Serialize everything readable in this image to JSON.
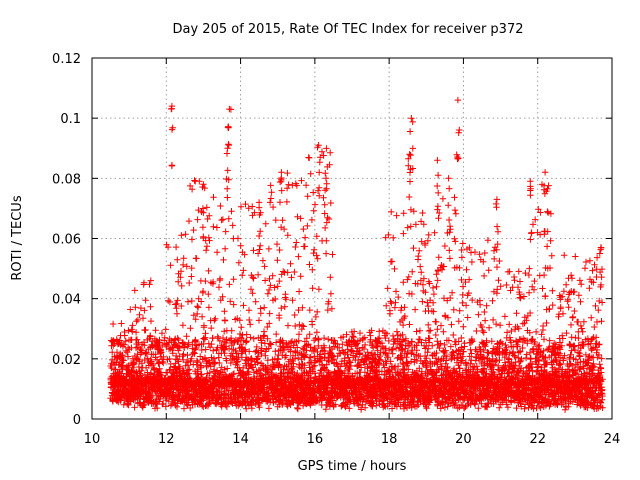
{
  "chart_data": {
    "type": "scatter",
    "title": "Day 205 of 2015, Rate Of TEC Index for receiver p372",
    "xlabel": "GPS time / hours",
    "ylabel": "ROTI / TECUs",
    "xlim": [
      10,
      24
    ],
    "ylim": [
      0,
      0.12
    ],
    "xticks": [
      10,
      12,
      14,
      16,
      18,
      20,
      22,
      24
    ],
    "xtick_labels": [
      "10",
      "12",
      "14",
      "16",
      "18",
      "20",
      "22",
      "24"
    ],
    "yticks": [
      0,
      0.02,
      0.04,
      0.06,
      0.08,
      0.1,
      0.12
    ],
    "ytick_labels": [
      "0",
      "0.02",
      "0.04",
      "0.06",
      "0.08",
      "0.1",
      "0.12"
    ],
    "grid": true,
    "marker": "+",
    "color": "#ff0000",
    "series": [
      {
        "name": "ROTI",
        "x_range": [
          10.5,
          23.75
        ],
        "typical_baseline": [
          0.005,
          0.015
        ],
        "peaks": [
          {
            "x": 12.15,
            "y": 0.104
          },
          {
            "x": 13.0,
            "y": 0.078
          },
          {
            "x": 13.7,
            "y": 0.103
          },
          {
            "x": 13.65,
            "y": 0.09
          },
          {
            "x": 14.5,
            "y": 0.072
          },
          {
            "x": 15.1,
            "y": 0.082
          },
          {
            "x": 16.1,
            "y": 0.091
          },
          {
            "x": 16.3,
            "y": 0.08
          },
          {
            "x": 18.6,
            "y": 0.1
          },
          {
            "x": 18.55,
            "y": 0.088
          },
          {
            "x": 19.3,
            "y": 0.086
          },
          {
            "x": 19.85,
            "y": 0.106
          },
          {
            "x": 19.6,
            "y": 0.08
          },
          {
            "x": 20.9,
            "y": 0.073
          },
          {
            "x": 21.8,
            "y": 0.079
          },
          {
            "x": 22.2,
            "y": 0.082
          },
          {
            "x": 23.7,
            "y": 0.057
          }
        ],
        "activity_bands": [
          {
            "x0": 10.5,
            "x1": 11.0,
            "ymax": 0.032
          },
          {
            "x0": 11.0,
            "x1": 11.6,
            "ymax": 0.046
          },
          {
            "x0": 11.6,
            "x1": 12.0,
            "ymax": 0.03
          },
          {
            "x0": 12.0,
            "x1": 12.6,
            "ymax": 0.062
          },
          {
            "x0": 12.6,
            "x1": 13.5,
            "ymax": 0.08
          },
          {
            "x0": 13.5,
            "x1": 14.0,
            "ymax": 0.07
          },
          {
            "x0": 14.0,
            "x1": 14.8,
            "ymax": 0.072
          },
          {
            "x0": 14.8,
            "x1": 15.6,
            "ymax": 0.082
          },
          {
            "x0": 15.6,
            "x1": 16.5,
            "ymax": 0.09
          },
          {
            "x0": 16.5,
            "x1": 17.9,
            "ymax": 0.03
          },
          {
            "x0": 17.9,
            "x1": 18.9,
            "ymax": 0.07
          },
          {
            "x0": 18.9,
            "x1": 19.8,
            "ymax": 0.075
          },
          {
            "x0": 19.8,
            "x1": 21.0,
            "ymax": 0.06
          },
          {
            "x0": 21.0,
            "x1": 21.8,
            "ymax": 0.05
          },
          {
            "x0": 21.8,
            "x1": 22.4,
            "ymax": 0.08
          },
          {
            "x0": 22.4,
            "x1": 23.75,
            "ymax": 0.057
          }
        ]
      }
    ]
  }
}
